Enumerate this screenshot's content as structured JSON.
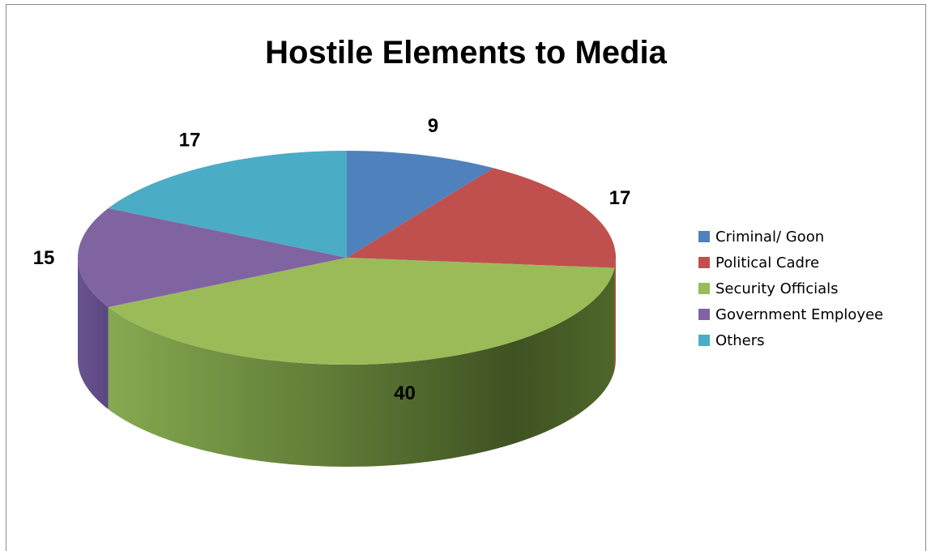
{
  "chart_data": {
    "type": "pie",
    "title": "Hostile Elements to Media",
    "categories": [
      "Criminal/ Goon",
      "Political Cadre",
      "Security Officials",
      "Government Employee",
      "Others"
    ],
    "values": [
      9,
      17,
      40,
      15,
      17
    ],
    "data_labels": [
      "9",
      "17",
      "40",
      "15",
      "17"
    ],
    "colors": [
      "#4F81BD",
      "#C0504D",
      "#9BBB59",
      "#8064A2",
      "#4BACC6"
    ],
    "style": "3d-pie",
    "legend_position": "right"
  }
}
